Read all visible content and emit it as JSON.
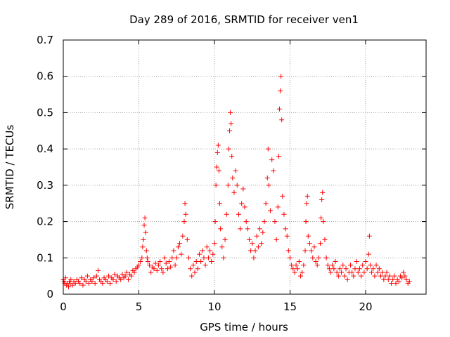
{
  "chart_data": {
    "type": "scatter",
    "title": "Day 289 of 2016, SRMTID for receiver ven1",
    "xlabel": "GPS time / hours",
    "ylabel": "SRMTID / TECUs",
    "xlim": [
      0,
      24
    ],
    "ylim": [
      0,
      0.7
    ],
    "x_ticks": [
      0,
      5,
      10,
      15,
      20
    ],
    "y_ticks": [
      0,
      0.1,
      0.2,
      0.3,
      0.4,
      0.5,
      0.6,
      0.7
    ],
    "x_tick_labels": [
      "0",
      "5",
      "10",
      "15",
      "20"
    ],
    "y_tick_labels": [
      "0",
      "0.1",
      "0.2",
      "0.3",
      "0.4",
      "0.5",
      "0.6",
      "0.7"
    ],
    "grid": true,
    "marker": "plus",
    "color": "#ff0000",
    "series": [
      {
        "name": "SRMTID",
        "points": [
          [
            0.0,
            0.04
          ],
          [
            0.05,
            0.035
          ],
          [
            0.1,
            0.03
          ],
          [
            0.15,
            0.045
          ],
          [
            0.2,
            0.025
          ],
          [
            0.3,
            0.03
          ],
          [
            0.35,
            0.02
          ],
          [
            0.4,
            0.035
          ],
          [
            0.45,
            0.03
          ],
          [
            0.5,
            0.04
          ],
          [
            0.6,
            0.025
          ],
          [
            0.7,
            0.035
          ],
          [
            0.8,
            0.03
          ],
          [
            0.9,
            0.04
          ],
          [
            1.0,
            0.035
          ],
          [
            1.1,
            0.03
          ],
          [
            1.2,
            0.045
          ],
          [
            1.3,
            0.025
          ],
          [
            1.4,
            0.04
          ],
          [
            1.5,
            0.035
          ],
          [
            1.6,
            0.05
          ],
          [
            1.7,
            0.03
          ],
          [
            1.8,
            0.04
          ],
          [
            1.9,
            0.035
          ],
          [
            2.0,
            0.045
          ],
          [
            2.1,
            0.03
          ],
          [
            2.2,
            0.05
          ],
          [
            2.3,
            0.065
          ],
          [
            2.4,
            0.04
          ],
          [
            2.5,
            0.035
          ],
          [
            2.6,
            0.03
          ],
          [
            2.7,
            0.045
          ],
          [
            2.8,
            0.04
          ],
          [
            2.9,
            0.035
          ],
          [
            3.0,
            0.05
          ],
          [
            3.1,
            0.03
          ],
          [
            3.2,
            0.045
          ],
          [
            3.3,
            0.04
          ],
          [
            3.4,
            0.055
          ],
          [
            3.5,
            0.035
          ],
          [
            3.6,
            0.05
          ],
          [
            3.7,
            0.045
          ],
          [
            3.8,
            0.04
          ],
          [
            3.9,
            0.055
          ],
          [
            4.0,
            0.045
          ],
          [
            4.1,
            0.05
          ],
          [
            4.2,
            0.06
          ],
          [
            4.3,
            0.04
          ],
          [
            4.4,
            0.055
          ],
          [
            4.5,
            0.05
          ],
          [
            4.6,
            0.065
          ],
          [
            4.7,
            0.06
          ],
          [
            4.8,
            0.07
          ],
          [
            4.9,
            0.075
          ],
          [
            5.0,
            0.08
          ],
          [
            5.1,
            0.09
          ],
          [
            5.2,
            0.1
          ],
          [
            5.25,
            0.13
          ],
          [
            5.3,
            0.15
          ],
          [
            5.35,
            0.19
          ],
          [
            5.4,
            0.21
          ],
          [
            5.45,
            0.17
          ],
          [
            5.5,
            0.12
          ],
          [
            5.55,
            0.1
          ],
          [
            5.6,
            0.09
          ],
          [
            5.7,
            0.08
          ],
          [
            5.8,
            0.06
          ],
          [
            5.9,
            0.075
          ],
          [
            6.0,
            0.07
          ],
          [
            6.1,
            0.085
          ],
          [
            6.2,
            0.065
          ],
          [
            6.3,
            0.08
          ],
          [
            6.4,
            0.09
          ],
          [
            6.5,
            0.07
          ],
          [
            6.6,
            0.06
          ],
          [
            6.7,
            0.1
          ],
          [
            6.8,
            0.085
          ],
          [
            6.9,
            0.07
          ],
          [
            7.0,
            0.09
          ],
          [
            7.1,
            0.075
          ],
          [
            7.2,
            0.1
          ],
          [
            7.3,
            0.12
          ],
          [
            7.4,
            0.08
          ],
          [
            7.5,
            0.1
          ],
          [
            7.6,
            0.13
          ],
          [
            7.7,
            0.14
          ],
          [
            7.8,
            0.11
          ],
          [
            7.9,
            0.16
          ],
          [
            8.0,
            0.2
          ],
          [
            8.05,
            0.25
          ],
          [
            8.1,
            0.22
          ],
          [
            8.2,
            0.15
          ],
          [
            8.3,
            0.1
          ],
          [
            8.4,
            0.07
          ],
          [
            8.5,
            0.05
          ],
          [
            8.6,
            0.08
          ],
          [
            8.7,
            0.06
          ],
          [
            8.8,
            0.09
          ],
          [
            8.9,
            0.07
          ],
          [
            9.0,
            0.11
          ],
          [
            9.1,
            0.09
          ],
          [
            9.2,
            0.12
          ],
          [
            9.3,
            0.1
          ],
          [
            9.4,
            0.08
          ],
          [
            9.5,
            0.13
          ],
          [
            9.6,
            0.1
          ],
          [
            9.7,
            0.12
          ],
          [
            9.8,
            0.09
          ],
          [
            9.9,
            0.11
          ],
          [
            10.0,
            0.14
          ],
          [
            10.05,
            0.2
          ],
          [
            10.1,
            0.3
          ],
          [
            10.15,
            0.35
          ],
          [
            10.2,
            0.39
          ],
          [
            10.25,
            0.41
          ],
          [
            10.3,
            0.34
          ],
          [
            10.35,
            0.25
          ],
          [
            10.4,
            0.18
          ],
          [
            10.5,
            0.13
          ],
          [
            10.6,
            0.1
          ],
          [
            10.7,
            0.15
          ],
          [
            10.8,
            0.22
          ],
          [
            10.9,
            0.3
          ],
          [
            10.95,
            0.4
          ],
          [
            11.0,
            0.45
          ],
          [
            11.05,
            0.5
          ],
          [
            11.1,
            0.47
          ],
          [
            11.15,
            0.38
          ],
          [
            11.2,
            0.32
          ],
          [
            11.3,
            0.28
          ],
          [
            11.4,
            0.34
          ],
          [
            11.5,
            0.3
          ],
          [
            11.6,
            0.22
          ],
          [
            11.7,
            0.18
          ],
          [
            11.8,
            0.25
          ],
          [
            11.9,
            0.29
          ],
          [
            12.0,
            0.24
          ],
          [
            12.1,
            0.2
          ],
          [
            12.2,
            0.18
          ],
          [
            12.3,
            0.15
          ],
          [
            12.4,
            0.12
          ],
          [
            12.5,
            0.14
          ],
          [
            12.6,
            0.1
          ],
          [
            12.7,
            0.12
          ],
          [
            12.8,
            0.16
          ],
          [
            12.9,
            0.13
          ],
          [
            13.0,
            0.18
          ],
          [
            13.1,
            0.14
          ],
          [
            13.2,
            0.17
          ],
          [
            13.3,
            0.2
          ],
          [
            13.4,
            0.25
          ],
          [
            13.5,
            0.32
          ],
          [
            13.55,
            0.4
          ],
          [
            13.6,
            0.3
          ],
          [
            13.7,
            0.23
          ],
          [
            13.8,
            0.37
          ],
          [
            13.9,
            0.34
          ],
          [
            14.0,
            0.2
          ],
          [
            14.1,
            0.15
          ],
          [
            14.2,
            0.24
          ],
          [
            14.25,
            0.38
          ],
          [
            14.3,
            0.51
          ],
          [
            14.35,
            0.56
          ],
          [
            14.4,
            0.6
          ],
          [
            14.45,
            0.48
          ],
          [
            14.5,
            0.27
          ],
          [
            14.6,
            0.22
          ],
          [
            14.7,
            0.18
          ],
          [
            14.8,
            0.16
          ],
          [
            14.9,
            0.12
          ],
          [
            15.0,
            0.1
          ],
          [
            15.1,
            0.08
          ],
          [
            15.2,
            0.07
          ],
          [
            15.3,
            0.06
          ],
          [
            15.4,
            0.08
          ],
          [
            15.5,
            0.07
          ],
          [
            15.6,
            0.09
          ],
          [
            15.7,
            0.05
          ],
          [
            15.8,
            0.06
          ],
          [
            15.9,
            0.08
          ],
          [
            16.0,
            0.12
          ],
          [
            16.05,
            0.2
          ],
          [
            16.1,
            0.25
          ],
          [
            16.15,
            0.27
          ],
          [
            16.2,
            0.16
          ],
          [
            16.3,
            0.14
          ],
          [
            16.4,
            0.12
          ],
          [
            16.5,
            0.1
          ],
          [
            16.6,
            0.13
          ],
          [
            16.7,
            0.09
          ],
          [
            16.8,
            0.08
          ],
          [
            16.9,
            0.1
          ],
          [
            17.0,
            0.14
          ],
          [
            17.05,
            0.21
          ],
          [
            17.1,
            0.26
          ],
          [
            17.15,
            0.28
          ],
          [
            17.2,
            0.2
          ],
          [
            17.3,
            0.15
          ],
          [
            17.4,
            0.1
          ],
          [
            17.5,
            0.08
          ],
          [
            17.6,
            0.07
          ],
          [
            17.7,
            0.06
          ],
          [
            17.8,
            0.08
          ],
          [
            17.9,
            0.07
          ],
          [
            18.0,
            0.09
          ],
          [
            18.1,
            0.06
          ],
          [
            18.2,
            0.05
          ],
          [
            18.3,
            0.07
          ],
          [
            18.4,
            0.06
          ],
          [
            18.5,
            0.08
          ],
          [
            18.6,
            0.05
          ],
          [
            18.7,
            0.07
          ],
          [
            18.8,
            0.04
          ],
          [
            18.9,
            0.06
          ],
          [
            19.0,
            0.08
          ],
          [
            19.1,
            0.06
          ],
          [
            19.2,
            0.05
          ],
          [
            19.3,
            0.07
          ],
          [
            19.4,
            0.09
          ],
          [
            19.5,
            0.06
          ],
          [
            19.6,
            0.07
          ],
          [
            19.7,
            0.05
          ],
          [
            19.8,
            0.08
          ],
          [
            19.9,
            0.06
          ],
          [
            20.0,
            0.09
          ],
          [
            20.1,
            0.07
          ],
          [
            20.2,
            0.11
          ],
          [
            20.25,
            0.16
          ],
          [
            20.3,
            0.08
          ],
          [
            20.4,
            0.06
          ],
          [
            20.5,
            0.07
          ],
          [
            20.6,
            0.05
          ],
          [
            20.7,
            0.08
          ],
          [
            20.8,
            0.06
          ],
          [
            20.9,
            0.07
          ],
          [
            21.0,
            0.05
          ],
          [
            21.1,
            0.06
          ],
          [
            21.2,
            0.04
          ],
          [
            21.3,
            0.05
          ],
          [
            21.4,
            0.06
          ],
          [
            21.5,
            0.04
          ],
          [
            21.6,
            0.05
          ],
          [
            21.7,
            0.03
          ],
          [
            21.8,
            0.04
          ],
          [
            21.9,
            0.05
          ],
          [
            22.0,
            0.03
          ],
          [
            22.1,
            0.04
          ],
          [
            22.2,
            0.035
          ],
          [
            22.3,
            0.05
          ],
          [
            22.4,
            0.045
          ],
          [
            22.5,
            0.06
          ],
          [
            22.6,
            0.05
          ],
          [
            22.7,
            0.04
          ],
          [
            22.8,
            0.03
          ],
          [
            22.9,
            0.035
          ]
        ]
      }
    ]
  }
}
